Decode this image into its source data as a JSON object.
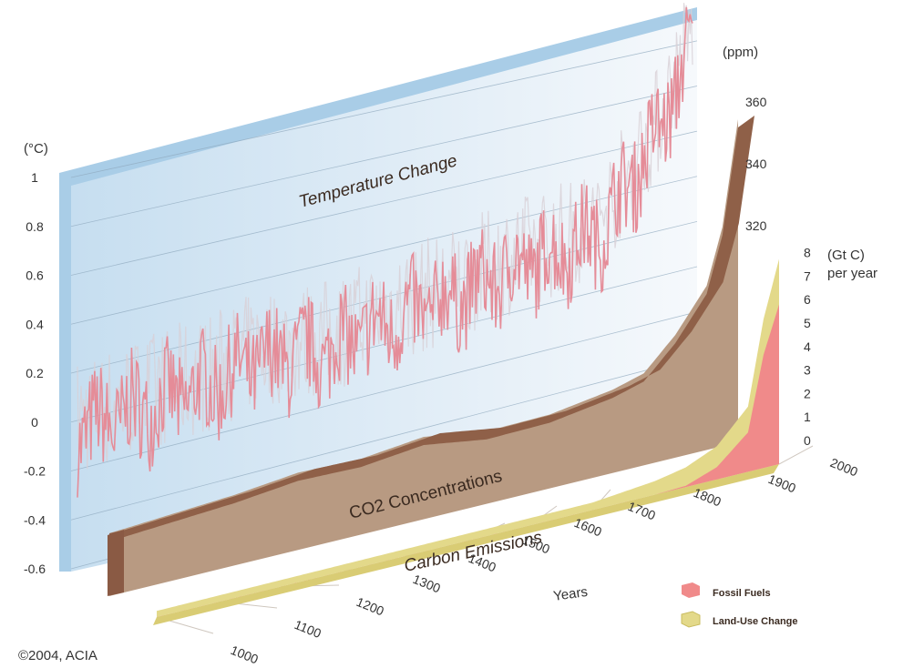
{
  "chart_data": {
    "type": "area",
    "credit": "©2004, ACIA",
    "colors": {
      "temperature_panel": "#cfe3f1",
      "temperature_panel_edge": "#a9cde7",
      "temperature_line": "#e58c98",
      "co2_fill": "#b89a82",
      "co2_top": "#8f6048",
      "fossil_fuels": "#f08a8a",
      "land_use": "#e3d98a"
    },
    "panels": [
      {
        "id": "temperature",
        "title": "Temperature Change",
        "unit": "(°C)",
        "y_ticks": [
          "1",
          "0.8",
          "0.6",
          "0.4",
          "0.2",
          "0",
          "-0.2",
          "-0.4",
          "-0.6"
        ],
        "ylim": [
          -0.6,
          1.0
        ],
        "x": [
          1000,
          1100,
          1200,
          1300,
          1400,
          1500,
          1600,
          1700,
          1800,
          1850,
          1900,
          1950,
          2000
        ],
        "values": [
          -0.05,
          -0.02,
          0.0,
          0.05,
          0.03,
          0.08,
          0.12,
          0.18,
          0.22,
          0.25,
          0.45,
          0.65,
          1.0
        ]
      },
      {
        "id": "co2",
        "title": "CO2 Concentrations",
        "unit": "(ppm)",
        "y_ticks": [
          "360",
          "340",
          "320"
        ],
        "x": [
          1000,
          1100,
          1200,
          1300,
          1400,
          1500,
          1600,
          1700,
          1800,
          1850,
          1900,
          1950,
          1975,
          2000
        ],
        "values": [
          278,
          279,
          280,
          282,
          281,
          283,
          279,
          279,
          282,
          285,
          296,
          311,
          331,
          369
        ]
      },
      {
        "id": "emissions",
        "title": "Carbon Emissions",
        "unit_line1": "(Gt C)",
        "unit_line2": "per year",
        "y_ticks": [
          "8",
          "7",
          "6",
          "5",
          "4",
          "3",
          "2",
          "1",
          "0"
        ],
        "ylim": [
          0,
          8
        ],
        "series": [
          {
            "name": "Fossil Fuels",
            "x": [
              1000,
              1700,
              1800,
              1850,
              1900,
              1950,
              1975,
              2000
            ],
            "values": [
              0,
              0,
              0,
              0.05,
              0.5,
              1.6,
              4.6,
              6.5
            ]
          },
          {
            "name": "Land-Use Change",
            "x": [
              1000,
              1700,
              1800,
              1850,
              1900,
              1950,
              1975,
              2000
            ],
            "values": [
              0,
              0.05,
              0.3,
              0.5,
              0.6,
              0.8,
              1.2,
              1.6
            ]
          }
        ]
      }
    ],
    "x_axis": {
      "label": "Years",
      "ticks": [
        "1000",
        "1100",
        "1200",
        "1300",
        "1400",
        "1500",
        "1600",
        "1700",
        "1800",
        "1900",
        "2000"
      ]
    },
    "legend": {
      "placement": "bottom-right",
      "items": [
        {
          "label": "Fossil Fuels",
          "color": "#f08a8a"
        },
        {
          "label": "Land-Use Change",
          "color": "#e3d98a"
        }
      ]
    }
  }
}
